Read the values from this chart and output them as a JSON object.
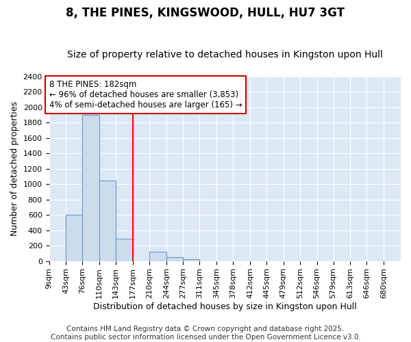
{
  "title": "8, THE PINES, KINGSWOOD, HULL, HU7 3GT",
  "subtitle": "Size of property relative to detached houses in Kingston upon Hull",
  "xlabel": "Distribution of detached houses by size in Kingston upon Hull",
  "ylabel": "Number of detached properties",
  "bins": [
    9,
    43,
    76,
    110,
    143,
    177,
    210,
    244,
    277,
    311,
    345,
    378,
    412,
    445,
    479,
    512,
    546,
    579,
    613,
    646,
    680
  ],
  "bar_heights": [
    0,
    600,
    1900,
    1050,
    290,
    0,
    120,
    50,
    20,
    0,
    0,
    0,
    0,
    0,
    0,
    0,
    0,
    0,
    0,
    0
  ],
  "bar_color": "#ccdcec",
  "bar_edge_color": "#6699cc",
  "red_line_x": 177,
  "ylim": [
    0,
    2400
  ],
  "yticks": [
    0,
    200,
    400,
    600,
    800,
    1000,
    1200,
    1400,
    1600,
    1800,
    2000,
    2200,
    2400
  ],
  "annotation_title": "8 THE PINES: 182sqm",
  "annotation_line1": "← 96% of detached houses are smaller (3,853)",
  "annotation_line2": "4% of semi-detached houses are larger (165) →",
  "annotation_box_color": "#ffffff",
  "annotation_box_edge_color": "#cc0000",
  "footer_line1": "Contains HM Land Registry data © Crown copyright and database right 2025.",
  "footer_line2": "Contains public sector information licensed under the Open Government Licence v3.0.",
  "bg_color": "#dce8f4",
  "title_fontsize": 12,
  "subtitle_fontsize": 10,
  "axis_label_fontsize": 9,
  "tick_fontsize": 8,
  "annotation_fontsize": 8.5,
  "footer_fontsize": 7.5
}
